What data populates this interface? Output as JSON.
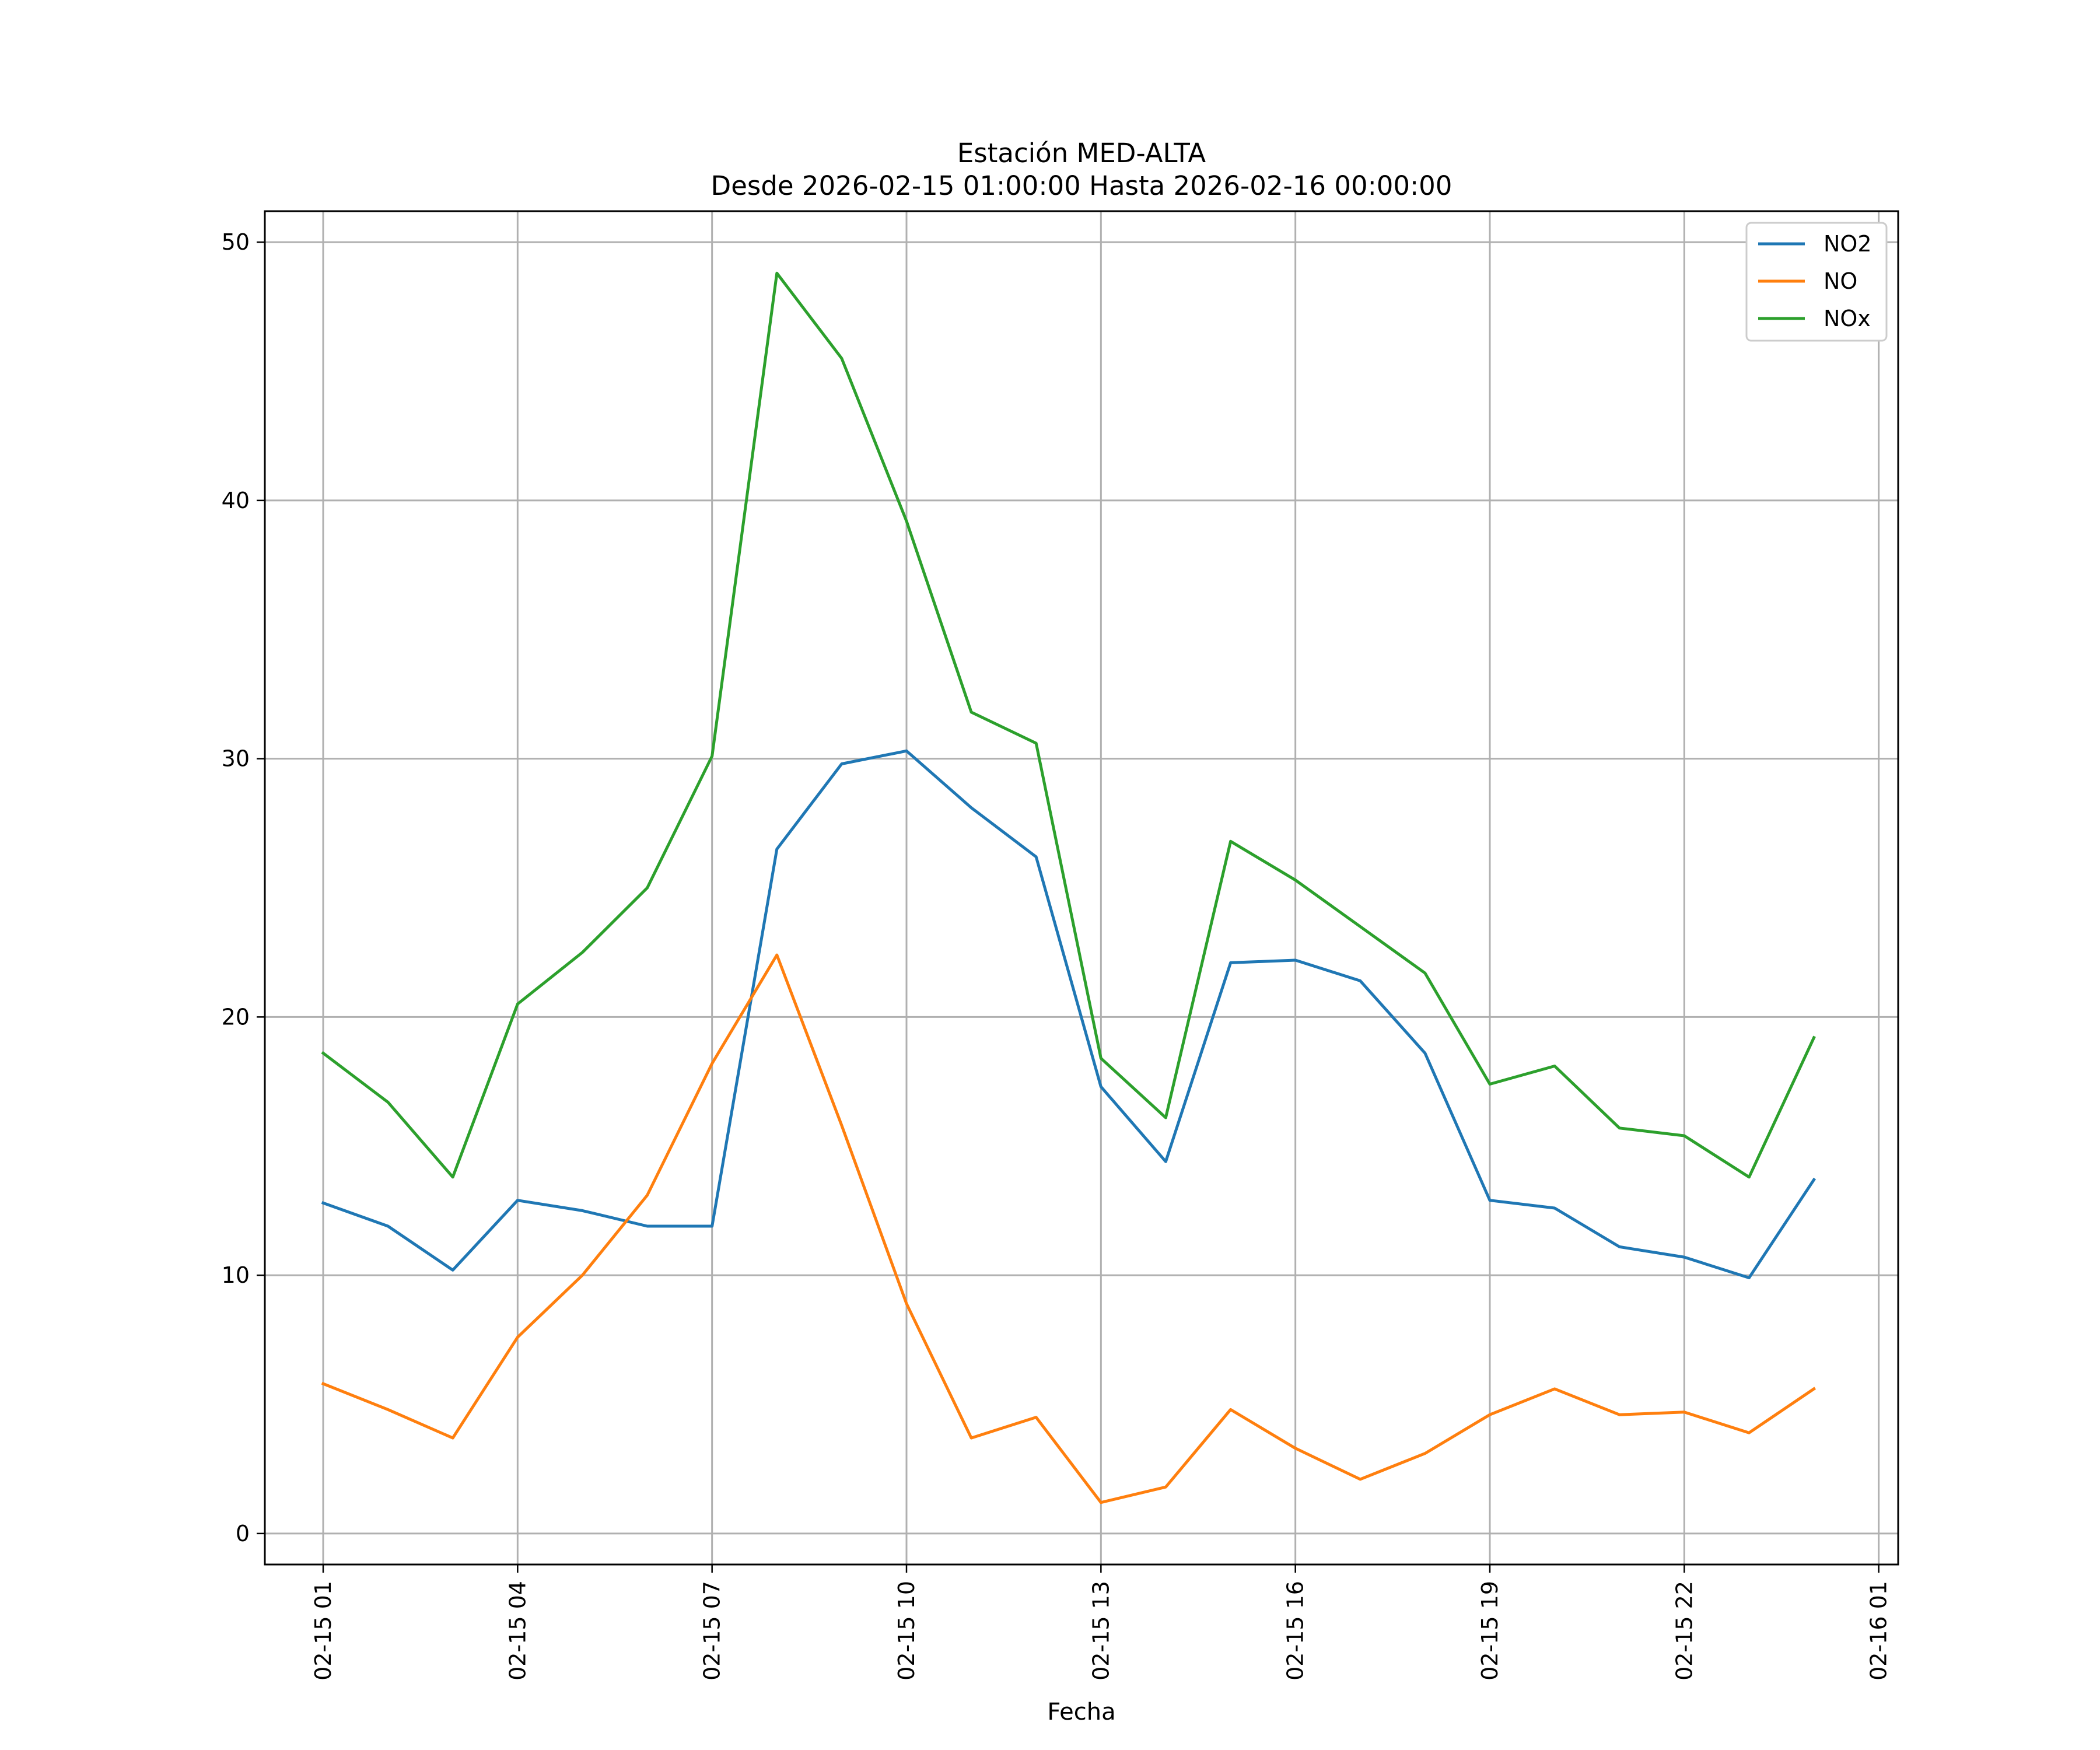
{
  "chart_data": {
    "type": "line",
    "title": "Estación MED-ALTA",
    "subtitle": "Desde 2026-02-15 01:00:00 Hasta 2026-02-16 00:00:00",
    "xlabel": "Fecha",
    "ylabel": "",
    "grid": true,
    "legend_position": "top-right",
    "x": [
      "02-15 01",
      "02-15 02",
      "02-15 03",
      "02-15 04",
      "02-15 05",
      "02-15 06",
      "02-15 07",
      "02-15 08",
      "02-15 09",
      "02-15 10",
      "02-15 11",
      "02-15 12",
      "02-15 13",
      "02-15 14",
      "02-15 15",
      "02-15 16",
      "02-15 17",
      "02-15 18",
      "02-15 19",
      "02-15 20",
      "02-15 21",
      "02-15 22",
      "02-15 23",
      "02-16 00"
    ],
    "x_range_hours": [
      -0.9,
      24.3
    ],
    "ylim": [
      -1.2,
      51.2
    ],
    "x_ticks": [
      {
        "hour": 0,
        "label": "02-15 01"
      },
      {
        "hour": 3,
        "label": "02-15 04"
      },
      {
        "hour": 6,
        "label": "02-15 07"
      },
      {
        "hour": 9,
        "label": "02-15 10"
      },
      {
        "hour": 12,
        "label": "02-15 13"
      },
      {
        "hour": 15,
        "label": "02-15 16"
      },
      {
        "hour": 18,
        "label": "02-15 19"
      },
      {
        "hour": 21,
        "label": "02-15 22"
      },
      {
        "hour": 24,
        "label": "02-16 01"
      }
    ],
    "y_ticks": [
      0,
      10,
      20,
      30,
      40,
      50
    ],
    "series": [
      {
        "name": "NO2",
        "color": "#1f77b4",
        "values": [
          12.8,
          11.9,
          10.2,
          12.9,
          12.5,
          11.9,
          11.9,
          26.5,
          29.8,
          30.3,
          28.1,
          26.2,
          17.3,
          14.4,
          22.1,
          22.2,
          21.4,
          18.6,
          12.9,
          12.6,
          11.1,
          10.7,
          9.9,
          13.7
        ]
      },
      {
        "name": "NO",
        "color": "#ff7f0e",
        "values": [
          5.8,
          4.8,
          3.7,
          7.6,
          10.0,
          13.1,
          18.2,
          22.4,
          15.8,
          8.9,
          3.7,
          4.5,
          1.2,
          1.8,
          4.8,
          3.3,
          2.1,
          3.1,
          4.6,
          5.6,
          4.6,
          4.7,
          3.9,
          5.6
        ]
      },
      {
        "name": "NOx",
        "color": "#2ca02c",
        "values": [
          18.6,
          16.7,
          13.8,
          20.5,
          22.5,
          25.0,
          30.1,
          48.8,
          45.5,
          39.2,
          31.8,
          30.6,
          18.4,
          16.1,
          26.8,
          25.3,
          23.5,
          21.7,
          17.4,
          18.1,
          15.7,
          15.4,
          13.8,
          19.2
        ]
      }
    ]
  }
}
